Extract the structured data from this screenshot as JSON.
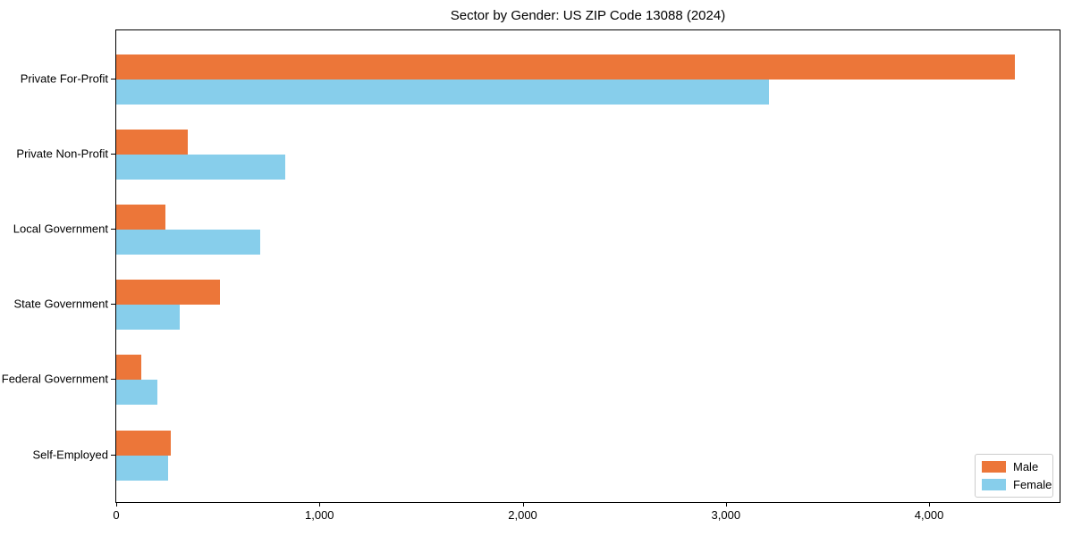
{
  "chart_data": {
    "type": "bar",
    "orientation": "horizontal",
    "title": "Sector by Gender: US ZIP Code 13088 (2024)",
    "categories": [
      "Private For-Profit",
      "Private Non-Profit",
      "Local Government",
      "State Government",
      "Federal Government",
      "Self-Employed"
    ],
    "series": [
      {
        "name": "Male",
        "color": "#ec7639",
        "values": [
          4420,
          350,
          240,
          512,
          122,
          269
        ]
      },
      {
        "name": "Female",
        "color": "#87ceeb",
        "values": [
          3210,
          830,
          707,
          312,
          202,
          256
        ]
      }
    ],
    "xlabel": "",
    "ylabel": "",
    "xlim": [
      0,
      4642
    ],
    "xticks": [
      0,
      1000,
      2000,
      3000,
      4000
    ],
    "xtick_labels": [
      "0",
      "1,000",
      "2,000",
      "3,000",
      "4,000"
    ],
    "grid": false,
    "legend": {
      "position": "lower-right",
      "items": [
        "Male",
        "Female"
      ]
    }
  }
}
